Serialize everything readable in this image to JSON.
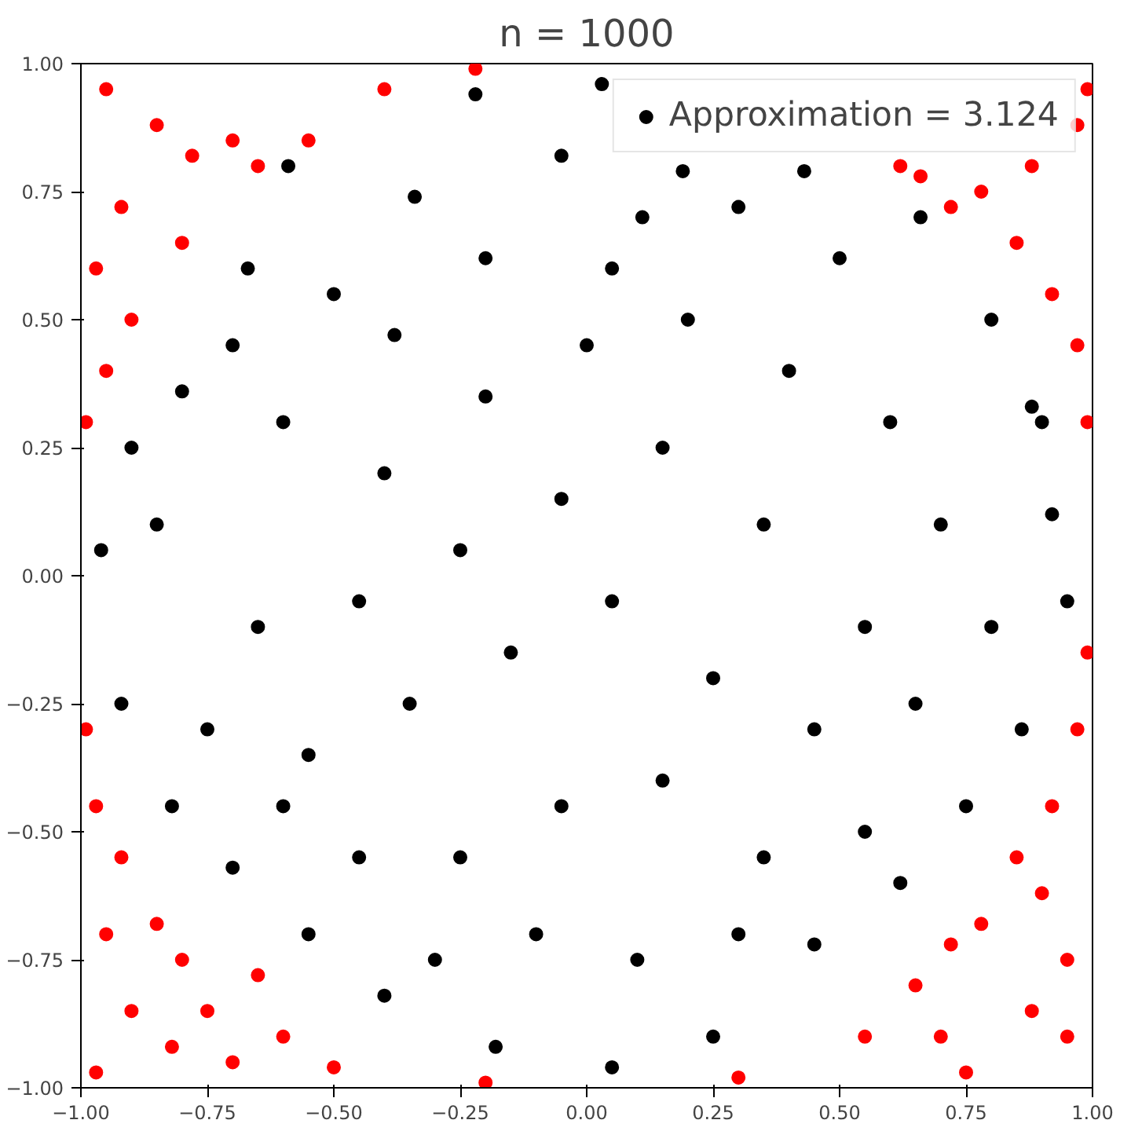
{
  "chart_data": {
    "type": "scatter",
    "title": "n = 1000",
    "marker": "circle",
    "grid": false,
    "legend": "top right",
    "xlim": [
      -1,
      1
    ],
    "ylim": [
      -1,
      1
    ],
    "xticks": [
      {
        "value": -1,
        "label": "−1.00"
      },
      {
        "value": -0.75,
        "label": "−0.75"
      },
      {
        "value": -0.5,
        "label": "−0.50"
      },
      {
        "value": -0.25,
        "label": "−0.25"
      },
      {
        "value": 0,
        "label": "0.00"
      },
      {
        "value": 0.25,
        "label": "0.25"
      },
      {
        "value": 0.5,
        "label": "0.50"
      },
      {
        "value": 0.75,
        "label": "0.75"
      },
      {
        "value": 1,
        "label": "1.00"
      }
    ],
    "yticks": [
      {
        "value": -1,
        "label": "−1.00"
      },
      {
        "value": -0.75,
        "label": "−0.75"
      },
      {
        "value": -0.5,
        "label": "−0.50"
      },
      {
        "value": -0.25,
        "label": "−0.25"
      },
      {
        "value": 0,
        "label": "0.00"
      },
      {
        "value": 0.25,
        "label": "0.25"
      },
      {
        "value": 0.5,
        "label": "0.50"
      },
      {
        "value": 0.75,
        "label": "0.75"
      },
      {
        "value": 1,
        "label": "1.00"
      }
    ],
    "series": [
      {
        "name": "Approximation = 3.124",
        "color": "#000000",
        "x": [
          0.03,
          -0.22,
          -0.59,
          -0.34,
          0.19,
          0.43,
          0.66,
          -0.8,
          -0.67,
          -0.5,
          -0.38,
          -0.2,
          -0.05,
          0.11,
          0.3,
          0.5,
          0.8,
          0.88,
          0.92,
          0.95,
          0.86,
          0.75,
          0.62,
          0.45,
          0.25,
          0.05,
          -0.18,
          -0.4,
          -0.55,
          -0.7,
          -0.82,
          -0.92,
          -0.96,
          -0.9,
          -0.6,
          -0.4,
          -0.2,
          0.0,
          0.2,
          0.4,
          0.6,
          0.7,
          0.55,
          0.35,
          0.15,
          -0.05,
          -0.25,
          -0.45,
          -0.65,
          -0.75,
          -0.55,
          -0.35,
          -0.15,
          0.05,
          0.25,
          0.45,
          0.65,
          0.55,
          0.35,
          0.15,
          -0.05,
          -0.25,
          -0.45,
          -0.6,
          -0.3,
          -0.1,
          0.1,
          0.3,
          0.05,
          -0.7,
          -0.85,
          0.8,
          0.9
        ],
        "values": [
          0.96,
          0.94,
          0.8,
          0.74,
          0.79,
          0.79,
          0.7,
          0.36,
          0.6,
          0.55,
          0.47,
          0.62,
          0.82,
          0.7,
          0.72,
          0.62,
          0.5,
          0.33,
          0.12,
          -0.05,
          -0.3,
          -0.45,
          -0.6,
          -0.72,
          -0.9,
          -0.96,
          -0.92,
          -0.82,
          -0.7,
          -0.57,
          -0.45,
          -0.25,
          0.05,
          0.25,
          0.3,
          0.2,
          0.35,
          0.45,
          0.5,
          0.4,
          0.3,
          0.1,
          -0.1,
          0.1,
          0.25,
          0.15,
          0.05,
          -0.05,
          -0.1,
          -0.3,
          -0.35,
          -0.25,
          -0.15,
          -0.05,
          -0.2,
          -0.3,
          -0.25,
          -0.5,
          -0.55,
          -0.4,
          -0.45,
          -0.55,
          -0.55,
          -0.45,
          -0.75,
          -0.7,
          -0.75,
          -0.7,
          0.6,
          0.45,
          0.1,
          -0.1,
          0.3
        ]
      },
      {
        "color": "#ff0000",
        "x": [
          -0.95,
          -0.85,
          -0.78,
          -0.7,
          -0.92,
          -0.97,
          -0.9,
          -0.95,
          -0.99,
          -0.8,
          -0.65,
          -0.55,
          -0.4,
          -0.22,
          0.62,
          0.66,
          0.72,
          0.78,
          0.85,
          0.92,
          0.97,
          0.99,
          0.99,
          0.97,
          0.88,
          -0.99,
          -0.97,
          -0.92,
          -0.95,
          -0.85,
          -0.8,
          -0.75,
          -0.9,
          -0.97,
          -0.7,
          -0.6,
          -0.5,
          -0.82,
          -0.65,
          -0.2,
          0.3,
          0.55,
          0.65,
          0.72,
          0.78,
          0.85,
          0.92,
          0.97,
          0.99,
          0.95,
          0.88,
          0.75,
          0.95,
          0.7,
          0.9
        ],
        "values": [
          0.95,
          0.88,
          0.82,
          0.85,
          0.72,
          0.6,
          0.5,
          0.4,
          0.3,
          0.65,
          0.8,
          0.85,
          0.95,
          0.99,
          0.8,
          0.78,
          0.72,
          0.75,
          0.65,
          0.55,
          0.45,
          0.3,
          0.95,
          0.88,
          0.8,
          -0.3,
          -0.45,
          -0.55,
          -0.7,
          -0.68,
          -0.75,
          -0.85,
          -0.85,
          -0.97,
          -0.95,
          -0.9,
          -0.96,
          -0.92,
          -0.78,
          -0.99,
          -0.98,
          -0.9,
          -0.8,
          -0.72,
          -0.68,
          -0.55,
          -0.45,
          -0.3,
          -0.15,
          -0.75,
          -0.85,
          -0.97,
          -0.9,
          -0.9,
          -0.62
        ]
      }
    ]
  }
}
